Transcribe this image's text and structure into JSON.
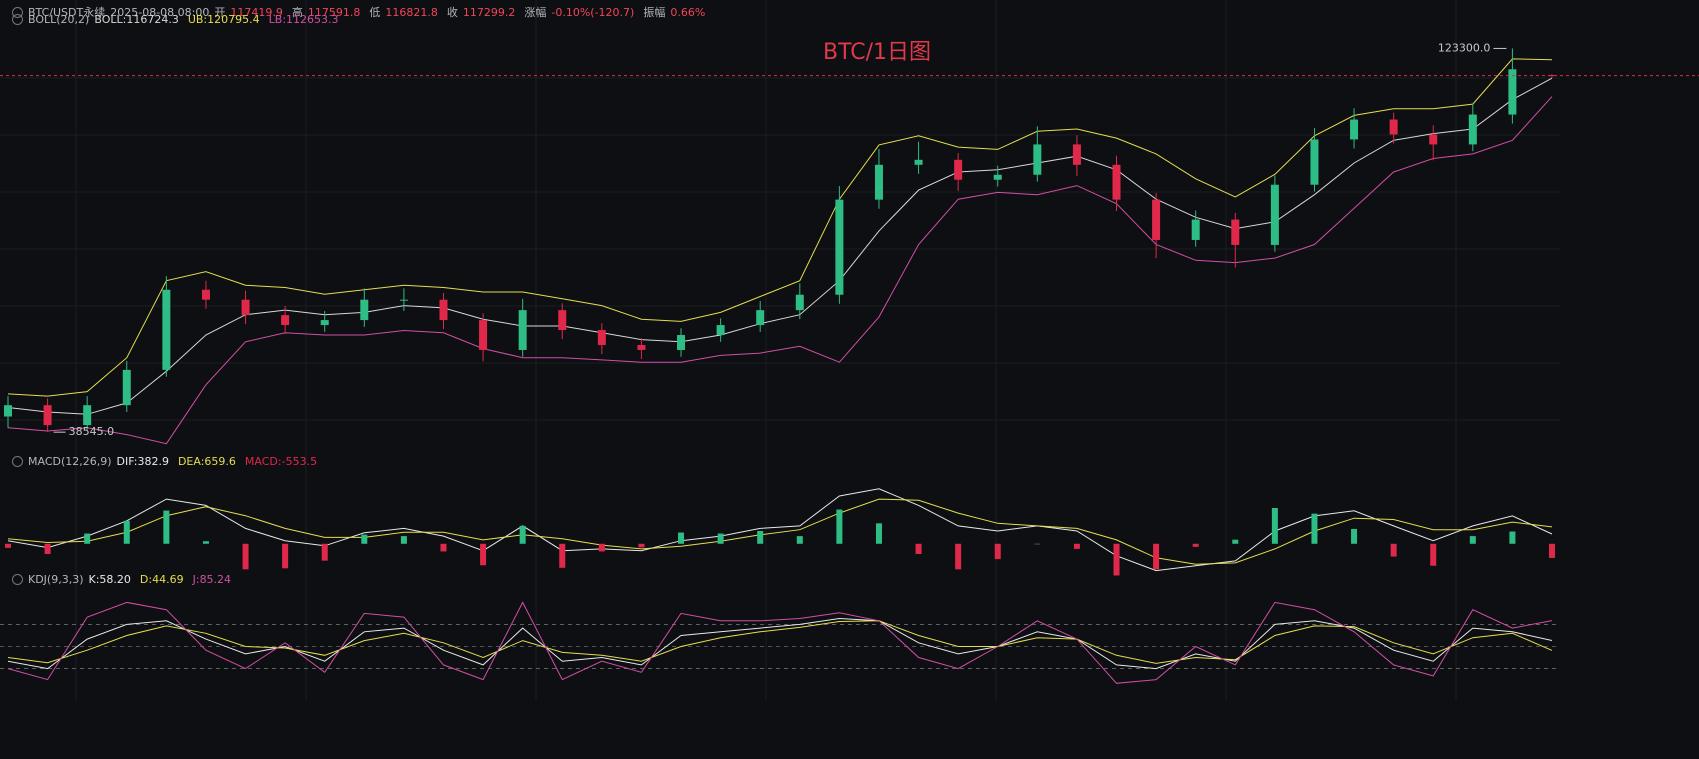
{
  "chart_data": [
    {
      "type": "candlestick",
      "title": "BTC/1日图",
      "header": {
        "symbol": "BTC/USDT永续",
        "time": "2025-08-08 08:00",
        "fields": [
          {
            "label": "开",
            "value": 117419.9
          },
          {
            "label": "高",
            "value": 117591.8
          },
          {
            "label": "低",
            "value": 116821.8
          },
          {
            "label": "收",
            "value": 117299.2
          },
          {
            "label": "涨幅",
            "value": "-0.10%(-120.7)"
          },
          {
            "label": "振幅",
            "value": "0.66%"
          }
        ]
      },
      "indicator": "BOLL(20,2)",
      "up_color": "#2ebd85",
      "down_color": "#e0294a",
      "ylim": [
        33500,
        134000
      ],
      "open": [
        42000,
        44500,
        40100,
        44500,
        52300,
        70000,
        67800,
        64400,
        62200,
        63300,
        67800,
        67800,
        63300,
        56700,
        65500,
        61100,
        57800,
        56700,
        60000,
        62200,
        65500,
        68900,
        89900,
        97600,
        98700,
        94300,
        95400,
        102100,
        97600,
        89900,
        81000,
        85500,
        79900,
        93200,
        103200,
        107600,
        104300,
        102100,
        108700,
        117419.9
      ],
      "high": [
        46500,
        46000,
        46500,
        54300,
        73000,
        72000,
        69800,
        66400,
        65300,
        70300,
        70300,
        69300,
        64800,
        68000,
        67000,
        62600,
        59300,
        61500,
        63700,
        67500,
        71400,
        92900,
        101100,
        102700,
        100200,
        97400,
        106100,
        104100,
        99600,
        91400,
        87500,
        87000,
        95200,
        105700,
        110100,
        109100,
        106300,
        111200,
        123300,
        117591.8
      ],
      "low": [
        39500,
        38545,
        39100,
        43000,
        50800,
        65800,
        62400,
        60200,
        60700,
        61800,
        65300,
        61300,
        54200,
        55200,
        59100,
        55800,
        54700,
        55200,
        58500,
        60700,
        63500,
        66900,
        87900,
        95600,
        91800,
        92800,
        93900,
        95100,
        87400,
        77000,
        79500,
        74900,
        78400,
        91700,
        101200,
        102300,
        98600,
        100600,
        106700,
        116821.8
      ],
      "close": [
        44500,
        40100,
        44500,
        52300,
        70000,
        67800,
        64400,
        62200,
        63300,
        67800,
        67800,
        63300,
        56700,
        65500,
        61100,
        57800,
        56700,
        60000,
        62200,
        65500,
        68900,
        89900,
        97600,
        98700,
        94300,
        95400,
        102100,
        97600,
        89900,
        81000,
        85500,
        79900,
        93200,
        103200,
        107600,
        104300,
        102100,
        108700,
        118700,
        117299.2
      ],
      "series": [
        {
          "name": "BOLL:",
          "color": "#d8d8d8",
          "last_value": 116724.3,
          "values": [
            44000,
            43000,
            42500,
            45000,
            52000,
            60000,
            64500,
            65500,
            64500,
            65000,
            66500,
            66000,
            63500,
            62000,
            62000,
            60500,
            59000,
            58500,
            60000,
            62500,
            64500,
            72000,
            83000,
            92000,
            96000,
            96500,
            98000,
            99500,
            96500,
            90000,
            86000,
            83500,
            85000,
            91000,
            98000,
            103000,
            104500,
            105500,
            112000,
            116724.3
          ]
        },
        {
          "name": "UB:",
          "color": "#e6dd4f",
          "last_value": 120795.4,
          "values": [
            47000,
            46500,
            47500,
            55000,
            72000,
            74000,
            71000,
            70500,
            69000,
            70000,
            71000,
            70500,
            69500,
            69500,
            68000,
            66500,
            63500,
            63000,
            65000,
            68500,
            72000,
            90000,
            102000,
            104000,
            101500,
            101000,
            105000,
            105500,
            103500,
            100000,
            94500,
            90500,
            95500,
            104000,
            108500,
            110000,
            110000,
            111000,
            121000,
            120795.4
          ]
        },
        {
          "name": "LB:",
          "color": "#d24fa6",
          "last_value": 112653.3,
          "values": [
            39500,
            38800,
            39500,
            38000,
            36000,
            49000,
            58500,
            60500,
            60000,
            60000,
            61000,
            60500,
            57000,
            55000,
            55000,
            54500,
            54000,
            54000,
            55500,
            56000,
            57500,
            54000,
            64000,
            80000,
            90000,
            91500,
            91000,
            93000,
            89000,
            80000,
            76500,
            76000,
            77000,
            80000,
            88000,
            96000,
            99000,
            100000,
            103000,
            112653.3
          ]
        }
      ],
      "annotations": [
        {
          "value": 123300,
          "label": "123300.0"
        },
        {
          "value": 38545,
          "label": "38545.0"
        }
      ]
    },
    {
      "type": "macd",
      "indicator": "MACD(12,26,9)",
      "ylim": [
        -1300,
        2300
      ],
      "series": [
        {
          "name": "DIF:",
          "color": "#e8e8e8",
          "last_value": 382.9,
          "values": [
            120,
            -150,
            300,
            900,
            1750,
            1500,
            600,
            120,
            -80,
            430,
            600,
            300,
            -270,
            700,
            -270,
            -200,
            -270,
            120,
            300,
            600,
            700,
            1870,
            2150,
            1500,
            700,
            500,
            700,
            500,
            -470,
            -1050,
            -860,
            -670,
            500,
            1090,
            1290,
            700,
            120,
            700,
            1090,
            382.9
          ]
        },
        {
          "name": "DEA:",
          "color": "#e6dd4f",
          "last_value": 659.6,
          "values": [
            200,
            50,
            100,
            450,
            1100,
            1450,
            1100,
            600,
            250,
            250,
            450,
            450,
            150,
            350,
            200,
            -50,
            -200,
            -100,
            100,
            350,
            550,
            1200,
            1750,
            1700,
            1200,
            800,
            700,
            600,
            150,
            -550,
            -800,
            -750,
            -200,
            500,
            1000,
            950,
            550,
            550,
            850,
            659.6
          ]
        },
        {
          "name": "MACD:",
          "type": "histogram",
          "color": "#e0294a",
          "up_color": "#2ebd85",
          "down_color": "#e0294a",
          "last_value": -553.5,
          "values": [
            -160,
            -400,
            400,
            900,
            1300,
            100,
            -1000,
            -960,
            -660,
            360,
            300,
            -300,
            -840,
            700,
            -940,
            -300,
            -140,
            440,
            400,
            500,
            300,
            1340,
            800,
            -400,
            -1000,
            -600,
            0,
            -200,
            -1240,
            -1000,
            -120,
            160,
            1400,
            1180,
            580,
            -500,
            -860,
            300,
            480,
            -553.5
          ]
        }
      ]
    },
    {
      "type": "kdj",
      "indicator": "KDJ(9,3,3)",
      "ylim": [
        -20,
        120
      ],
      "yticks": [
        20,
        50,
        80
      ],
      "series": [
        {
          "name": "K:",
          "color": "#e8e8e8",
          "last_value": {
            "value": 58.2,
            "label": "58.20"
          },
          "values": [
            30,
            20,
            60,
            80,
            85,
            60,
            40,
            50,
            30,
            70,
            75,
            45,
            25,
            75,
            30,
            35,
            25,
            65,
            70,
            75,
            80,
            88,
            85,
            55,
            40,
            50,
            70,
            60,
            25,
            20,
            40,
            30,
            80,
            85,
            75,
            45,
            30,
            75,
            70,
            58.2
          ]
        },
        {
          "name": "D:",
          "color": "#e6dd4f",
          "last_value": 44.69,
          "values": [
            35,
            28,
            45,
            65,
            78,
            68,
            50,
            48,
            38,
            58,
            68,
            55,
            35,
            58,
            42,
            38,
            30,
            50,
            62,
            70,
            76,
            84,
            85,
            65,
            50,
            50,
            62,
            60,
            38,
            27,
            35,
            32,
            65,
            78,
            77,
            55,
            40,
            62,
            68,
            44.69
          ]
        },
        {
          "name": "J:",
          "color": "#d24fa6",
          "last_value": 85.24,
          "values": [
            20,
            5,
            90,
            110,
            100,
            45,
            20,
            55,
            15,
            95,
            90,
            25,
            5,
            110,
            5,
            30,
            15,
            95,
            85,
            85,
            88,
            96,
            85,
            35,
            20,
            50,
            85,
            60,
            0,
            5,
            50,
            25,
            110,
            100,
            70,
            25,
            10,
            100,
            75,
            85.24
          ]
        }
      ]
    }
  ]
}
